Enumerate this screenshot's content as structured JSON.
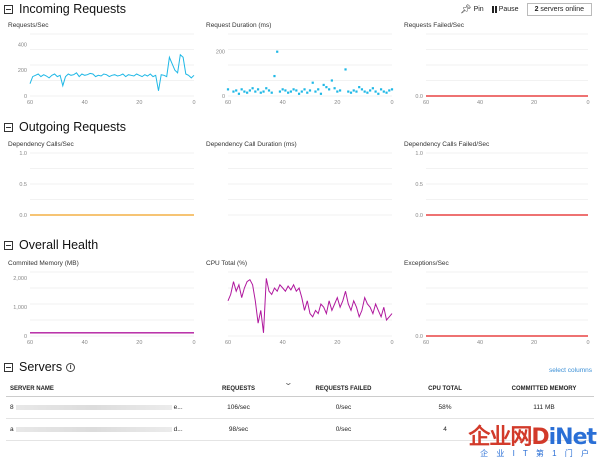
{
  "toolbar": {
    "pin_label": "Pin",
    "pause_label": "Pause",
    "servers_count": "2",
    "servers_label": "servers online"
  },
  "sections": {
    "incoming": "Incoming Requests",
    "outgoing": "Outgoing Requests",
    "health": "Overall Health",
    "servers": "Servers"
  },
  "colors": {
    "requests": "#1fb8e6",
    "failed": "#e31f1f",
    "dependency": "#f0a020",
    "health": "#b0189e"
  },
  "chart_data": [
    {
      "id": "requests-sec",
      "type": "line",
      "title": "Requests/Sec",
      "color": "#1fb8e6",
      "yticks": [
        "0",
        "200",
        "400"
      ],
      "ylim": [
        0,
        480
      ],
      "xticks": [
        "60",
        "40",
        "20",
        "0"
      ],
      "xlim": [
        60,
        0
      ],
      "x": [
        60,
        59,
        58,
        57,
        56,
        55,
        54,
        53,
        52,
        51,
        50,
        49,
        48,
        47,
        46,
        45,
        44,
        43,
        42,
        41,
        40,
        39,
        38,
        37,
        36,
        35,
        34,
        33,
        32,
        31,
        30,
        29,
        28,
        27,
        26,
        25,
        24,
        23,
        22,
        21,
        20,
        19,
        18,
        17,
        16,
        15,
        14,
        13,
        12,
        11,
        10,
        9,
        8,
        7,
        6,
        5,
        4,
        3,
        2,
        1,
        0
      ],
      "values": [
        95,
        150,
        160,
        170,
        150,
        165,
        155,
        140,
        160,
        170,
        150,
        160,
        80,
        150,
        170,
        160,
        165,
        180,
        150,
        170,
        160,
        165,
        175,
        170,
        150,
        160,
        155,
        170,
        165,
        150,
        160,
        165,
        155,
        160,
        170,
        150,
        165,
        160,
        155,
        170,
        160,
        150,
        165,
        155,
        170,
        150,
        160,
        40,
        165,
        160,
        150,
        300,
        250,
        200,
        180,
        320,
        300,
        170,
        160,
        140,
        160
      ]
    },
    {
      "id": "request-duration",
      "type": "scatter",
      "title": "Request Duration (ms)",
      "color": "#1fb8e6",
      "yticks": [
        "0",
        "200"
      ],
      "ylim": [
        0,
        280
      ],
      "xticks": [
        "60",
        "40",
        "20",
        "0"
      ],
      "xlim": [
        60,
        0
      ],
      "x": [
        60,
        58,
        57,
        56,
        55,
        54,
        53,
        52,
        51,
        50,
        49,
        48,
        47,
        46,
        45,
        44,
        43,
        42,
        41,
        40,
        39,
        38,
        37,
        36,
        35,
        34,
        33,
        32,
        31,
        30,
        29,
        28,
        27,
        26,
        25,
        24,
        23,
        22,
        21,
        20,
        19,
        17,
        16,
        15,
        14,
        13,
        12,
        11,
        10,
        9,
        8,
        7,
        6,
        5,
        4,
        3,
        2,
        1,
        0
      ],
      "values": [
        30,
        20,
        25,
        10,
        30,
        20,
        15,
        25,
        35,
        20,
        30,
        15,
        20,
        35,
        25,
        15,
        90,
        200,
        20,
        30,
        25,
        15,
        20,
        30,
        25,
        10,
        20,
        30,
        15,
        25,
        60,
        20,
        30,
        10,
        50,
        40,
        30,
        70,
        35,
        20,
        25,
        120,
        20,
        15,
        25,
        20,
        40,
        30,
        20,
        15,
        25,
        35,
        20,
        10,
        30,
        20,
        15,
        25,
        30
      ]
    },
    {
      "id": "requests-failed",
      "type": "line",
      "title": "Requests Failed/Sec",
      "color": "#e31f1f",
      "yticks": [
        "0.0"
      ],
      "ylim": [
        0,
        1
      ],
      "xticks": [
        "60",
        "40",
        "20",
        "0"
      ],
      "xlim": [
        60,
        0
      ],
      "x": [
        60,
        0
      ],
      "values": [
        0,
        0
      ]
    },
    {
      "id": "dependency-calls",
      "type": "line",
      "title": "Dependency Calls/Sec",
      "color": "#f0a020",
      "yticks": [
        "0.0",
        "0.5",
        "1.0"
      ],
      "ylim": [
        0,
        1
      ],
      "xticks": [],
      "xlim": [
        60,
        0
      ],
      "x": [
        60,
        0
      ],
      "values": [
        0,
        0
      ]
    },
    {
      "id": "dependency-duration",
      "type": "line",
      "title": "Dependency Call Duration (ms)",
      "color": "#f0a020",
      "yticks": [],
      "ylim": [
        0,
        1
      ],
      "xticks": [],
      "xlim": [
        60,
        0
      ],
      "x": [],
      "values": []
    },
    {
      "id": "dependency-failed",
      "type": "line",
      "title": "Dependency Calls Failed/Sec",
      "color": "#e31f1f",
      "yticks": [
        "0.0",
        "0.5",
        "1.0"
      ],
      "ylim": [
        0,
        1
      ],
      "xticks": [],
      "xlim": [
        60,
        0
      ],
      "x": [
        60,
        0
      ],
      "values": [
        0,
        0
      ]
    },
    {
      "id": "committed-memory",
      "type": "line",
      "title": "Commited Memory (MB)",
      "color": "#b0189e",
      "yticks": [
        "0",
        "1,000",
        "2,000"
      ],
      "ylim": [
        0,
        2200
      ],
      "xticks": [
        "60",
        "40",
        "20",
        "0"
      ],
      "xlim": [
        60,
        0
      ],
      "x": [
        60,
        0
      ],
      "values": [
        111,
        111
      ]
    },
    {
      "id": "cpu-total",
      "type": "line",
      "title": "CPU Total (%)",
      "color": "#b0189e",
      "yticks": [],
      "ylim": [
        0,
        100
      ],
      "xticks": [
        "60",
        "40",
        "20",
        "0"
      ],
      "xlim": [
        60,
        0
      ],
      "x": [
        60,
        59,
        58,
        57,
        56,
        55,
        54,
        53,
        52,
        51,
        50,
        49,
        48,
        47,
        46,
        45,
        44,
        43,
        42,
        41,
        40,
        39,
        38,
        37,
        36,
        35,
        34,
        33,
        32,
        31,
        30,
        29,
        28,
        27,
        26,
        25,
        24,
        23,
        22,
        21,
        20,
        19,
        18,
        17,
        16,
        15,
        14,
        13,
        12,
        11,
        10,
        9,
        8,
        7,
        6,
        5,
        4,
        3,
        2,
        1,
        0
      ],
      "values": [
        55,
        65,
        85,
        70,
        80,
        60,
        75,
        85,
        88,
        80,
        55,
        20,
        40,
        5,
        90,
        70,
        65,
        75,
        70,
        80,
        75,
        70,
        78,
        72,
        80,
        70,
        75,
        60,
        40,
        55,
        35,
        30,
        40,
        35,
        50,
        45,
        35,
        55,
        40,
        50,
        60,
        45,
        55,
        70,
        50,
        40,
        55,
        45,
        30,
        40,
        60,
        50,
        45,
        35,
        50,
        40,
        30,
        45,
        25,
        30,
        35
      ]
    },
    {
      "id": "exceptions-sec",
      "type": "line",
      "title": "Exceptions/Sec",
      "color": "#e31f1f",
      "yticks": [
        "0.0"
      ],
      "ylim": [
        0,
        1
      ],
      "xticks": [
        "60",
        "40",
        "20",
        "0"
      ],
      "xlim": [
        60,
        0
      ],
      "x": [
        60,
        0
      ],
      "values": [
        0,
        0
      ]
    }
  ],
  "servers": {
    "select_columns": "select columns",
    "columns": [
      "SERVER NAME",
      "REQUESTS",
      "REQUESTS FAILED",
      "CPU TOTAL",
      "COMMITTED MEMORY"
    ],
    "rows": [
      {
        "name_start": "8",
        "name_end": "e...",
        "requests": "106/sec",
        "failed": "0/sec",
        "cpu": "58%",
        "memory": "111 MB"
      },
      {
        "name_start": "a",
        "name_end": "d...",
        "requests": "98/sec",
        "failed": "0/sec",
        "cpu": "4",
        "memory": ""
      }
    ]
  },
  "watermark": {
    "logo": "企业网D",
    "logo_accent": "iNet",
    "subtitle": "企 业 I T 第 1 门 户"
  }
}
